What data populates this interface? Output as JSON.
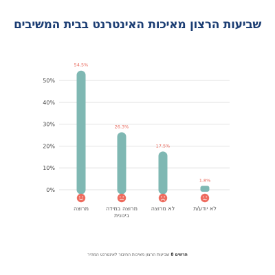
{
  "chart_data": {
    "type": "bar",
    "title": "שביעות הרצון מאיכות האינטרנט בבית המשיבים",
    "categories": [
      "מרוצה",
      "מרוצה במידה בינונית",
      "לא מרוצה",
      "לא יודע/ת"
    ],
    "category_lines": [
      [
        "מרוצה"
      ],
      [
        "מרוצה במידה",
        "בינונית"
      ],
      [
        "לא מרוצה"
      ],
      [
        "לא יודע/ת"
      ]
    ],
    "values": [
      54.5,
      26.3,
      17.5,
      1.8
    ],
    "value_labels": [
      "54.5%",
      "26.3%",
      "17.5%",
      "1.8%"
    ],
    "category_icons": [
      "happy-face-icon",
      "neutral-face-icon",
      "sad-face-icon",
      "unsure-face-icon"
    ],
    "yticks": [
      "0%",
      "10%",
      "20%",
      "30%",
      "40%",
      "50%"
    ],
    "ylim": [
      0,
      50
    ],
    "grid": true,
    "colors": {
      "bar": "#7fb8b3",
      "label": "#e8695c",
      "icon": "#ee6c5f",
      "title": "#1b3d73",
      "grid": "#d9d9d9"
    }
  },
  "caption": {
    "prefix": "תרשים 8",
    "text": " שביעות הרצון מאיכות החיבור לאינטרנט המהיר"
  }
}
